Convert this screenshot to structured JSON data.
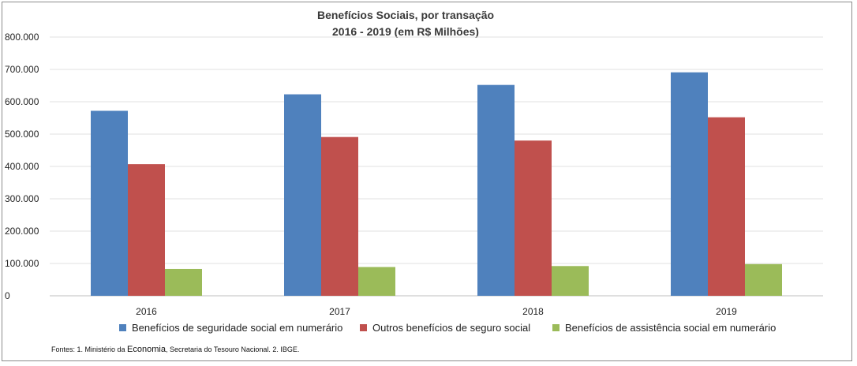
{
  "chart_data": {
    "type": "bar",
    "title": "Benefícios Sociais, por transação",
    "subtitle": "2016 - 2019 (em R$ Milhões)",
    "categories": [
      "2016",
      "2017",
      "2018",
      "2019"
    ],
    "series": [
      {
        "name": "Benefícios de seguridade social em numerário",
        "color": "#4f81bd",
        "values": [
          572000,
          623000,
          652000,
          691000
        ]
      },
      {
        "name": "Outros benefícios de seguro social",
        "color": "#c0504d",
        "values": [
          407000,
          491000,
          480000,
          552000
        ]
      },
      {
        "name": "Benefícios de assistência social em numerário",
        "color": "#9bbb59",
        "values": [
          83000,
          89000,
          92000,
          98000
        ]
      }
    ],
    "ylim": [
      0,
      800000
    ],
    "yticks": [
      0,
      100000,
      200000,
      300000,
      400000,
      500000,
      600000,
      700000,
      800000
    ],
    "ytick_labels": [
      "0",
      "100.000",
      "200.000",
      "300.000",
      "400.000",
      "500.000",
      "600.000",
      "700.000",
      "800.000"
    ],
    "grid": true,
    "legend_position": "bottom"
  },
  "footer": {
    "prefix": "Fontes: 1. Ministério da ",
    "emphasis": "Economia",
    "suffix": ", Secretaria do Tesouro Nacional. 2. IBGE."
  }
}
